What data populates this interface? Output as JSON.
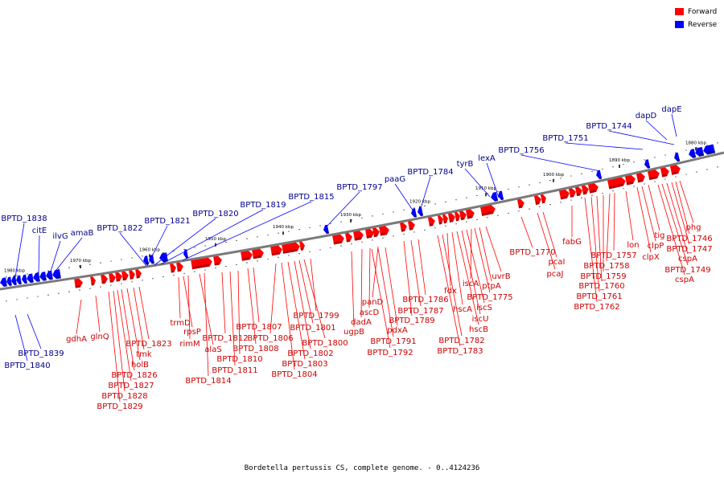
{
  "caption": "Bordetella pertussis CS, complete genome. - 0..4124236",
  "legend": [
    {
      "label": "Forward",
      "color": "#ff0000"
    },
    {
      "label": "Reverse",
      "color": "#0000ff"
    }
  ],
  "colors": {
    "forward": "#ff0000",
    "forward_dark": "#b80000",
    "reverse": "#0000ff",
    "reverse_dark": "#00009a",
    "backbone": "#7a7a7a",
    "forward_label": "#cc0000",
    "reverse_label": "#00008b"
  },
  "ticks": [
    "1880 kbp",
    "1890 kbp",
    "1900 kbp",
    "1910 kbp",
    "1920 kbp",
    "1930 kbp",
    "1940 kbp",
    "1950 kbp",
    "1960 kbp",
    "1970 kbp",
    "1980 kbp"
  ],
  "reverse_labels": [
    "dapE",
    "dapD",
    "BPTD_1744",
    "BPTD_1751",
    "BPTD_1756",
    "lexA",
    "tyrB",
    "BPTD_1784",
    "paaG",
    "BPTD_1797",
    "BPTD_1815",
    "BPTD_1819",
    "BPTD_1820",
    "BPTD_1821",
    "BPTD_1822",
    "amaB",
    "ilvG",
    "citE",
    "BPTD_1838",
    "BPTD_1839",
    "BPTD_1840"
  ],
  "forward_labels": [
    "phg",
    "BPTD_1746",
    "BPTD_1747",
    "cspA",
    "BPTD_1749",
    "cspA",
    "tig",
    "clpP",
    "clpX",
    "lon",
    "BPTD_1757",
    "BPTD_1758",
    "BPTD_1759",
    "BPTD_1760",
    "BPTD_1761",
    "BPTD_1762",
    "fabG",
    "pcaI",
    "pcaJ",
    "BPTD_1770",
    "uvrB",
    "ptpA",
    "BPTD_1775",
    "iscA",
    "iscS",
    "iscU",
    "hscB",
    "hscA",
    "fdx",
    "BPTD_1782",
    "BPTD_1783",
    "BPTD_1786",
    "BPTD_1787",
    "BPTD_1789",
    "panD",
    "ascD",
    "dadA",
    "ugpB",
    "pdxA",
    "BPTD_1791",
    "BPTD_1792",
    "BPTD_1799",
    "BPTD_1800",
    "BPTD_1801",
    "BPTD_1802",
    "BPTD_1803",
    "BPTD_1804",
    "BPTD_1806",
    "BPTD_1807",
    "BPTD_1808",
    "BPTD_1810",
    "BPTD_1811",
    "BPTD_1812",
    "BPTD_1814",
    "alaS",
    "rimM",
    "rpsP",
    "trmD",
    "BPTD_1823",
    "tmk",
    "holB",
    "BPTD_1826",
    "BPTD_1827",
    "BPTD_1828",
    "BPTD_1829",
    "glnQ",
    "gdhA"
  ]
}
